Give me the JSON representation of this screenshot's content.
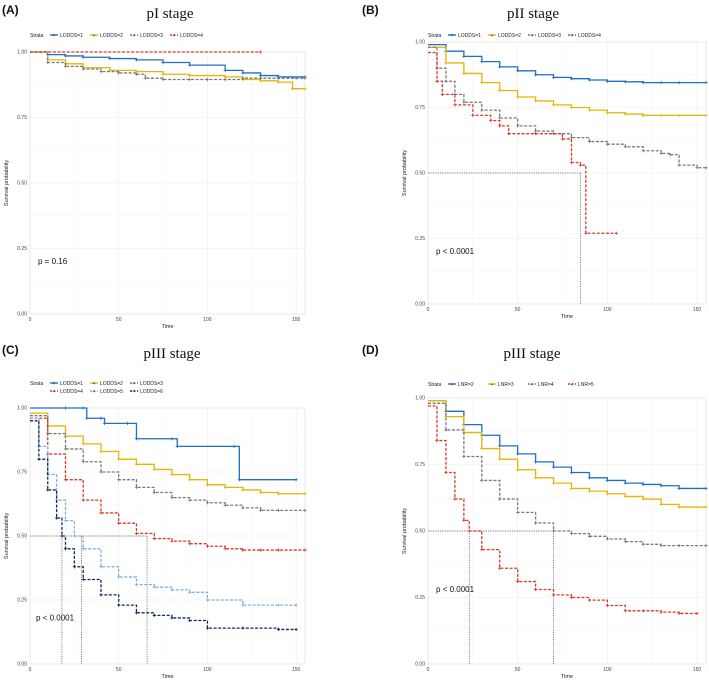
{
  "chart_data": [
    {
      "type": "line",
      "letter": "(A)",
      "title": "pI stage",
      "xlabel": "Time",
      "ylabel": "Survival probability",
      "xlim": [
        0,
        155
      ],
      "ylim": [
        0,
        1
      ],
      "xticks": [
        0,
        50,
        100,
        150
      ],
      "yticks": [
        0.0,
        0.25,
        0.5,
        0.75,
        1.0
      ],
      "legend_title": "Strata",
      "pvalue": "p = 0.16",
      "median_lines": [],
      "series": [
        {
          "name": "LODDS=1",
          "color": "#1f6fc5",
          "dashed": false,
          "x": [
            0,
            10,
            20,
            30,
            45,
            60,
            75,
            90,
            110,
            120,
            130,
            140,
            155
          ],
          "y": [
            1.0,
            0.99,
            0.985,
            0.98,
            0.975,
            0.97,
            0.96,
            0.95,
            0.93,
            0.92,
            0.91,
            0.905,
            0.905
          ]
        },
        {
          "name": "LODDS=2",
          "color": "#e8b500",
          "dashed": false,
          "x": [
            0,
            10,
            20,
            30,
            45,
            60,
            75,
            90,
            110,
            120,
            130,
            140,
            148,
            155
          ],
          "y": [
            1.0,
            0.97,
            0.955,
            0.94,
            0.93,
            0.925,
            0.915,
            0.91,
            0.905,
            0.895,
            0.89,
            0.885,
            0.86,
            0.86
          ]
        },
        {
          "name": "LODDS=3",
          "color": "#7a7a7a",
          "dashed": true,
          "x": [
            0,
            10,
            20,
            30,
            40,
            50,
            60,
            65,
            75,
            90,
            100,
            110,
            120,
            130,
            140,
            150,
            155
          ],
          "y": [
            1.0,
            0.96,
            0.945,
            0.935,
            0.925,
            0.92,
            0.915,
            0.9,
            0.895,
            0.895,
            0.895,
            0.895,
            0.9,
            0.9,
            0.9,
            0.9,
            0.9
          ]
        },
        {
          "name": "LODDS=4",
          "color": "#d93a2b",
          "dashed": true,
          "x": [
            0,
            130
          ],
          "y": [
            1.0,
            1.0
          ]
        }
      ]
    },
    {
      "type": "line",
      "letter": "(B)",
      "title": "pII stage",
      "xlabel": "Time",
      "ylabel": "Survival probability",
      "xlim": [
        0,
        155
      ],
      "ylim": [
        0,
        1
      ],
      "xticks": [
        0,
        50,
        100,
        150
      ],
      "yticks": [
        0.0,
        0.25,
        0.5,
        0.75,
        1.0
      ],
      "legend_title": "Strata",
      "pvalue": "p < 0.0001",
      "median_lines": [
        85
      ],
      "series": [
        {
          "name": "LODDS=1",
          "color": "#1f6fc5",
          "dashed": false,
          "x": [
            0,
            10,
            20,
            30,
            40,
            50,
            60,
            70,
            80,
            90,
            100,
            110,
            120,
            130,
            140,
            155
          ],
          "y": [
            0.99,
            0.965,
            0.945,
            0.925,
            0.905,
            0.89,
            0.875,
            0.865,
            0.86,
            0.855,
            0.85,
            0.848,
            0.845,
            0.845,
            0.845,
            0.845
          ]
        },
        {
          "name": "LODDS=2",
          "color": "#e8b500",
          "dashed": false,
          "x": [
            0,
            10,
            20,
            30,
            40,
            50,
            60,
            70,
            80,
            90,
            100,
            110,
            120,
            130,
            140,
            155
          ],
          "y": [
            0.98,
            0.92,
            0.88,
            0.845,
            0.815,
            0.79,
            0.775,
            0.76,
            0.75,
            0.74,
            0.73,
            0.725,
            0.72,
            0.72,
            0.72,
            0.72
          ]
        },
        {
          "name": "LODDS=3",
          "color": "#7a7a7a",
          "dashed": true,
          "x": [
            0,
            5,
            10,
            15,
            20,
            30,
            40,
            50,
            60,
            70,
            80,
            90,
            100,
            110,
            120,
            130,
            135,
            140,
            150,
            155
          ],
          "y": [
            0.98,
            0.9,
            0.85,
            0.8,
            0.77,
            0.74,
            0.71,
            0.68,
            0.66,
            0.65,
            0.635,
            0.62,
            0.61,
            0.6,
            0.585,
            0.575,
            0.57,
            0.53,
            0.52,
            0.52
          ]
        },
        {
          "name": "LODDS=4",
          "color": "#d93a2b",
          "dashed": true,
          "x": [
            0,
            5,
            8,
            15,
            25,
            35,
            40,
            45,
            60,
            75,
            80,
            85,
            88,
            105
          ],
          "y": [
            0.96,
            0.85,
            0.8,
            0.76,
            0.72,
            0.7,
            0.68,
            0.65,
            0.65,
            0.63,
            0.54,
            0.53,
            0.27,
            0.27
          ]
        }
      ]
    },
    {
      "type": "line",
      "letter": "(C)",
      "title": "pIII stage",
      "xlabel": "Time",
      "ylabel": "Survival probability",
      "xlim": [
        0,
        155
      ],
      "ylim": [
        0,
        1
      ],
      "xticks": [
        0,
        50,
        100,
        150
      ],
      "yticks": [
        0.0,
        0.25,
        0.5,
        0.75,
        1.0
      ],
      "legend_title": "Strata",
      "pvalue": "p < 0.0001",
      "median_lines": [
        18,
        29,
        66
      ],
      "series": [
        {
          "name": "LODDS=1",
          "color": "#1f6fc5",
          "dashed": false,
          "x": [
            0,
            20,
            30,
            32,
            40,
            42,
            55,
            60,
            80,
            83,
            115,
            118,
            150
          ],
          "y": [
            1.0,
            1.0,
            1.0,
            0.96,
            0.96,
            0.94,
            0.94,
            0.88,
            0.88,
            0.85,
            0.85,
            0.72,
            0.72
          ]
        },
        {
          "name": "LODDS=2",
          "color": "#e8b500",
          "dashed": false,
          "x": [
            0,
            10,
            20,
            30,
            40,
            50,
            60,
            70,
            80,
            90,
            100,
            110,
            120,
            130,
            140,
            155
          ],
          "y": [
            0.98,
            0.93,
            0.89,
            0.86,
            0.83,
            0.8,
            0.78,
            0.76,
            0.74,
            0.72,
            0.7,
            0.69,
            0.68,
            0.67,
            0.665,
            0.665
          ]
        },
        {
          "name": "LODDS=3",
          "color": "#7a7a7a",
          "dashed": true,
          "x": [
            0,
            10,
            20,
            30,
            40,
            50,
            60,
            70,
            80,
            90,
            100,
            110,
            120,
            130,
            140,
            155
          ],
          "y": [
            0.97,
            0.9,
            0.84,
            0.79,
            0.75,
            0.72,
            0.69,
            0.67,
            0.65,
            0.64,
            0.63,
            0.62,
            0.61,
            0.6,
            0.6,
            0.6
          ]
        },
        {
          "name": "LODDS=4",
          "color": "#d93a2b",
          "dashed": true,
          "x": [
            0,
            10,
            20,
            30,
            40,
            50,
            60,
            70,
            80,
            90,
            100,
            110,
            120,
            130,
            140,
            155
          ],
          "y": [
            0.96,
            0.82,
            0.72,
            0.64,
            0.59,
            0.55,
            0.51,
            0.49,
            0.48,
            0.47,
            0.46,
            0.45,
            0.445,
            0.445,
            0.445,
            0.445
          ]
        },
        {
          "name": "LODDS=5",
          "color": "#7fb0e0",
          "dashed": true,
          "x": [
            0,
            5,
            10,
            15,
            20,
            25,
            30,
            40,
            50,
            60,
            70,
            80,
            90,
            100,
            120,
            140,
            150
          ],
          "y": [
            0.96,
            0.85,
            0.74,
            0.64,
            0.56,
            0.5,
            0.45,
            0.38,
            0.34,
            0.31,
            0.3,
            0.29,
            0.28,
            0.25,
            0.23,
            0.23,
            0.23
          ]
        },
        {
          "name": "LODDS=6",
          "color": "#0d2a5c",
          "dashed": true,
          "x": [
            0,
            5,
            10,
            15,
            18,
            20,
            25,
            30,
            40,
            50,
            60,
            70,
            80,
            90,
            100,
            120,
            140,
            150
          ],
          "y": [
            0.95,
            0.8,
            0.68,
            0.57,
            0.5,
            0.45,
            0.38,
            0.33,
            0.27,
            0.23,
            0.2,
            0.19,
            0.18,
            0.17,
            0.14,
            0.14,
            0.135,
            0.135
          ]
        }
      ]
    },
    {
      "type": "line",
      "letter": "(D)",
      "title": "pIII stage",
      "xlabel": "Time",
      "ylabel": "Survival probability",
      "xlim": [
        0,
        155
      ],
      "ylim": [
        0,
        1
      ],
      "xticks": [
        0,
        50,
        100,
        150
      ],
      "yticks": [
        0.0,
        0.25,
        0.5,
        0.75,
        1.0
      ],
      "legend_title": "Strata",
      "pvalue": "p < 0.0001",
      "median_lines": [
        23,
        70
      ],
      "series": [
        {
          "name": "LNR=2",
          "color": "#1f6fc5",
          "dashed": false,
          "x": [
            0,
            10,
            20,
            30,
            40,
            50,
            60,
            70,
            80,
            90,
            100,
            110,
            120,
            130,
            140,
            155
          ],
          "y": [
            0.99,
            0.95,
            0.9,
            0.86,
            0.82,
            0.79,
            0.76,
            0.74,
            0.72,
            0.7,
            0.69,
            0.68,
            0.675,
            0.67,
            0.66,
            0.66
          ]
        },
        {
          "name": "LNR=3",
          "color": "#e8b500",
          "dashed": false,
          "x": [
            0,
            10,
            20,
            30,
            40,
            50,
            60,
            70,
            80,
            90,
            100,
            110,
            120,
            130,
            140,
            155
          ],
          "y": [
            0.99,
            0.93,
            0.87,
            0.81,
            0.77,
            0.73,
            0.7,
            0.68,
            0.66,
            0.65,
            0.64,
            0.63,
            0.62,
            0.6,
            0.59,
            0.59
          ]
        },
        {
          "name": "LNR=4",
          "color": "#7a7a7a",
          "dashed": true,
          "x": [
            0,
            10,
            20,
            30,
            40,
            50,
            60,
            70,
            80,
            90,
            100,
            110,
            120,
            130,
            140,
            155
          ],
          "y": [
            0.98,
            0.88,
            0.78,
            0.69,
            0.62,
            0.57,
            0.53,
            0.5,
            0.49,
            0.48,
            0.47,
            0.46,
            0.45,
            0.445,
            0.445,
            0.445
          ]
        },
        {
          "name": "LNR=5",
          "color": "#d93a2b",
          "dashed": true,
          "x": [
            0,
            5,
            10,
            15,
            20,
            23,
            30,
            40,
            50,
            60,
            70,
            80,
            90,
            100,
            110,
            120,
            130,
            140,
            150
          ],
          "y": [
            0.97,
            0.84,
            0.72,
            0.62,
            0.54,
            0.5,
            0.43,
            0.36,
            0.31,
            0.28,
            0.26,
            0.25,
            0.24,
            0.22,
            0.2,
            0.2,
            0.195,
            0.19,
            0.19
          ]
        }
      ]
    }
  ]
}
